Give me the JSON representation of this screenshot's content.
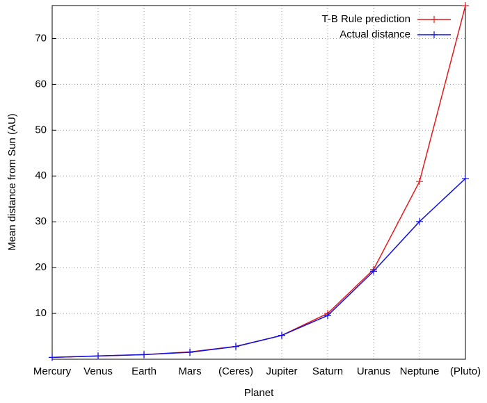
{
  "chart_data": {
    "type": "line",
    "xlabel": "Planet",
    "ylabel": "Mean distance from Sun (AU)",
    "categories": [
      "Mercury",
      "Venus",
      "Earth",
      "Mars",
      "(Ceres)",
      "Jupiter",
      "Saturn",
      "Uranus",
      "Neptune",
      "(Pluto)"
    ],
    "series": [
      {
        "name": "T-B Rule prediction",
        "color": "#e41a1c",
        "values": [
          0.4,
          0.7,
          1.0,
          1.6,
          2.8,
          5.2,
          10.0,
          19.6,
          38.8,
          77.2
        ]
      },
      {
        "name": "Actual distance",
        "color": "#1010e0",
        "values": [
          0.39,
          0.72,
          1.0,
          1.52,
          2.77,
          5.2,
          9.54,
          19.2,
          30.06,
          39.44
        ]
      }
    ],
    "ylim": [
      0,
      77.2
    ],
    "yticks": [
      10,
      20,
      30,
      40,
      50,
      60,
      70
    ],
    "grid": true,
    "legend": "top-right"
  }
}
